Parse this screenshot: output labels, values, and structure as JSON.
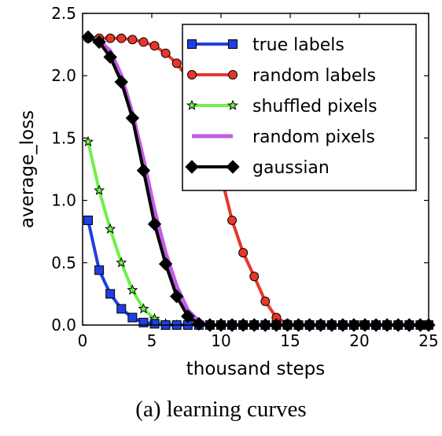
{
  "caption": "(a) learning curves",
  "chart_data": {
    "type": "line",
    "xlabel": "thousand steps",
    "ylabel": "average_loss",
    "xlim": [
      0,
      25
    ],
    "ylim": [
      0,
      2.5
    ],
    "xticks": [
      0,
      5,
      10,
      15,
      20,
      25
    ],
    "yticks": [
      0.0,
      0.5,
      1.0,
      1.5,
      2.0,
      2.5
    ],
    "xtick_labels": [
      "0",
      "5",
      "10",
      "15",
      "20",
      "25"
    ],
    "ytick_labels": [
      "0.0",
      "0.5",
      "1.0",
      "1.5",
      "2.0",
      "2.5"
    ],
    "grid": false,
    "legend_position": "top-right",
    "series": [
      {
        "name": "true labels",
        "color": "#1f3fe0",
        "marker": "square",
        "x": [
          0.4,
          1.2,
          2.0,
          2.8,
          3.6,
          4.4,
          5.2,
          6.0,
          6.8,
          7.6,
          8.4,
          9.2,
          10.0,
          10.8,
          11.6,
          12.4,
          13.2,
          14.0,
          14.8,
          15.6,
          16.4,
          17.2,
          18.0,
          18.8,
          19.6,
          20.4,
          21.2,
          22.0,
          22.8,
          23.6,
          24.4,
          25.0
        ],
        "y": [
          0.84,
          0.44,
          0.25,
          0.13,
          0.06,
          0.02,
          0.01,
          0.0,
          0.0,
          0.0,
          0.0,
          0.0,
          0.0,
          0.0,
          0.0,
          0.0,
          0.0,
          0.0,
          0.0,
          0.0,
          0.0,
          0.0,
          0.0,
          0.0,
          0.0,
          0.0,
          0.0,
          0.0,
          0.0,
          0.0,
          0.0,
          0.0
        ]
      },
      {
        "name": "random labels",
        "color": "#e8362a",
        "marker": "circle",
        "x": [
          0.4,
          1.2,
          2.0,
          2.8,
          3.6,
          4.4,
          5.2,
          6.0,
          6.8,
          7.6,
          8.4,
          9.2,
          10.0,
          10.8,
          11.6,
          12.4,
          13.2,
          14.0,
          14.8,
          15.6,
          16.4,
          17.2,
          18.0,
          18.8,
          19.6,
          20.4,
          21.2,
          22.0,
          22.8,
          23.6,
          24.4,
          25.0
        ],
        "y": [
          2.3,
          2.3,
          2.3,
          2.3,
          2.29,
          2.27,
          2.24,
          2.18,
          2.1,
          1.98,
          1.8,
          1.55,
          1.2,
          0.84,
          0.58,
          0.39,
          0.19,
          0.06,
          0.01,
          0.0,
          0.0,
          0.0,
          0.0,
          0.0,
          0.0,
          0.0,
          0.0,
          0.0,
          0.0,
          0.0,
          0.0,
          0.0
        ]
      },
      {
        "name": "shuffled pixels",
        "color": "#6ff04a",
        "marker": "star",
        "x": [
          0.4,
          1.2,
          2.0,
          2.8,
          3.6,
          4.4,
          5.2,
          6.0,
          6.8,
          7.6,
          8.4,
          9.2,
          10.0,
          10.8,
          11.6,
          12.4,
          13.2,
          14.0,
          14.8,
          15.6,
          16.4,
          17.2,
          18.0,
          18.8,
          19.6,
          20.4,
          21.2,
          22.0,
          22.8,
          23.6,
          24.4,
          25.0
        ],
        "y": [
          1.47,
          1.08,
          0.77,
          0.5,
          0.28,
          0.13,
          0.05,
          0.01,
          0.0,
          0.0,
          0.0,
          0.0,
          0.0,
          0.0,
          0.0,
          0.0,
          0.0,
          0.0,
          0.0,
          0.0,
          0.0,
          0.0,
          0.0,
          0.0,
          0.0,
          0.0,
          0.0,
          0.0,
          0.0,
          0.0,
          0.0,
          0.0
        ]
      },
      {
        "name": "random pixels",
        "color": "#c35ce8",
        "marker": "none",
        "x": [
          0.4,
          1.2,
          2.0,
          2.8,
          3.6,
          4.4,
          5.2,
          6.0,
          6.8,
          7.6,
          8.4,
          9.2,
          10.0,
          25.0
        ],
        "y": [
          2.31,
          2.28,
          2.2,
          2.0,
          1.7,
          1.33,
          0.92,
          0.58,
          0.31,
          0.12,
          0.03,
          0.0,
          0.0,
          0.0
        ]
      },
      {
        "name": "gaussian",
        "color": "#000000",
        "marker": "diamond",
        "x": [
          0.4,
          1.2,
          2.0,
          2.8,
          3.6,
          4.4,
          5.2,
          6.0,
          6.8,
          7.6,
          8.4,
          9.2,
          10.0,
          10.8,
          11.6,
          12.4,
          13.2,
          14.0,
          14.8,
          15.6,
          16.4,
          17.2,
          18.0,
          18.8,
          19.6,
          20.4,
          21.2,
          22.0,
          22.8,
          23.6,
          24.4,
          25.0
        ],
        "y": [
          2.31,
          2.27,
          2.15,
          1.95,
          1.66,
          1.24,
          0.81,
          0.49,
          0.23,
          0.07,
          0.01,
          0.0,
          0.0,
          0.0,
          0.0,
          0.0,
          0.0,
          0.0,
          0.0,
          0.0,
          0.0,
          0.0,
          0.0,
          0.0,
          0.0,
          0.0,
          0.0,
          0.0,
          0.0,
          0.0,
          0.0,
          0.0
        ]
      }
    ]
  }
}
